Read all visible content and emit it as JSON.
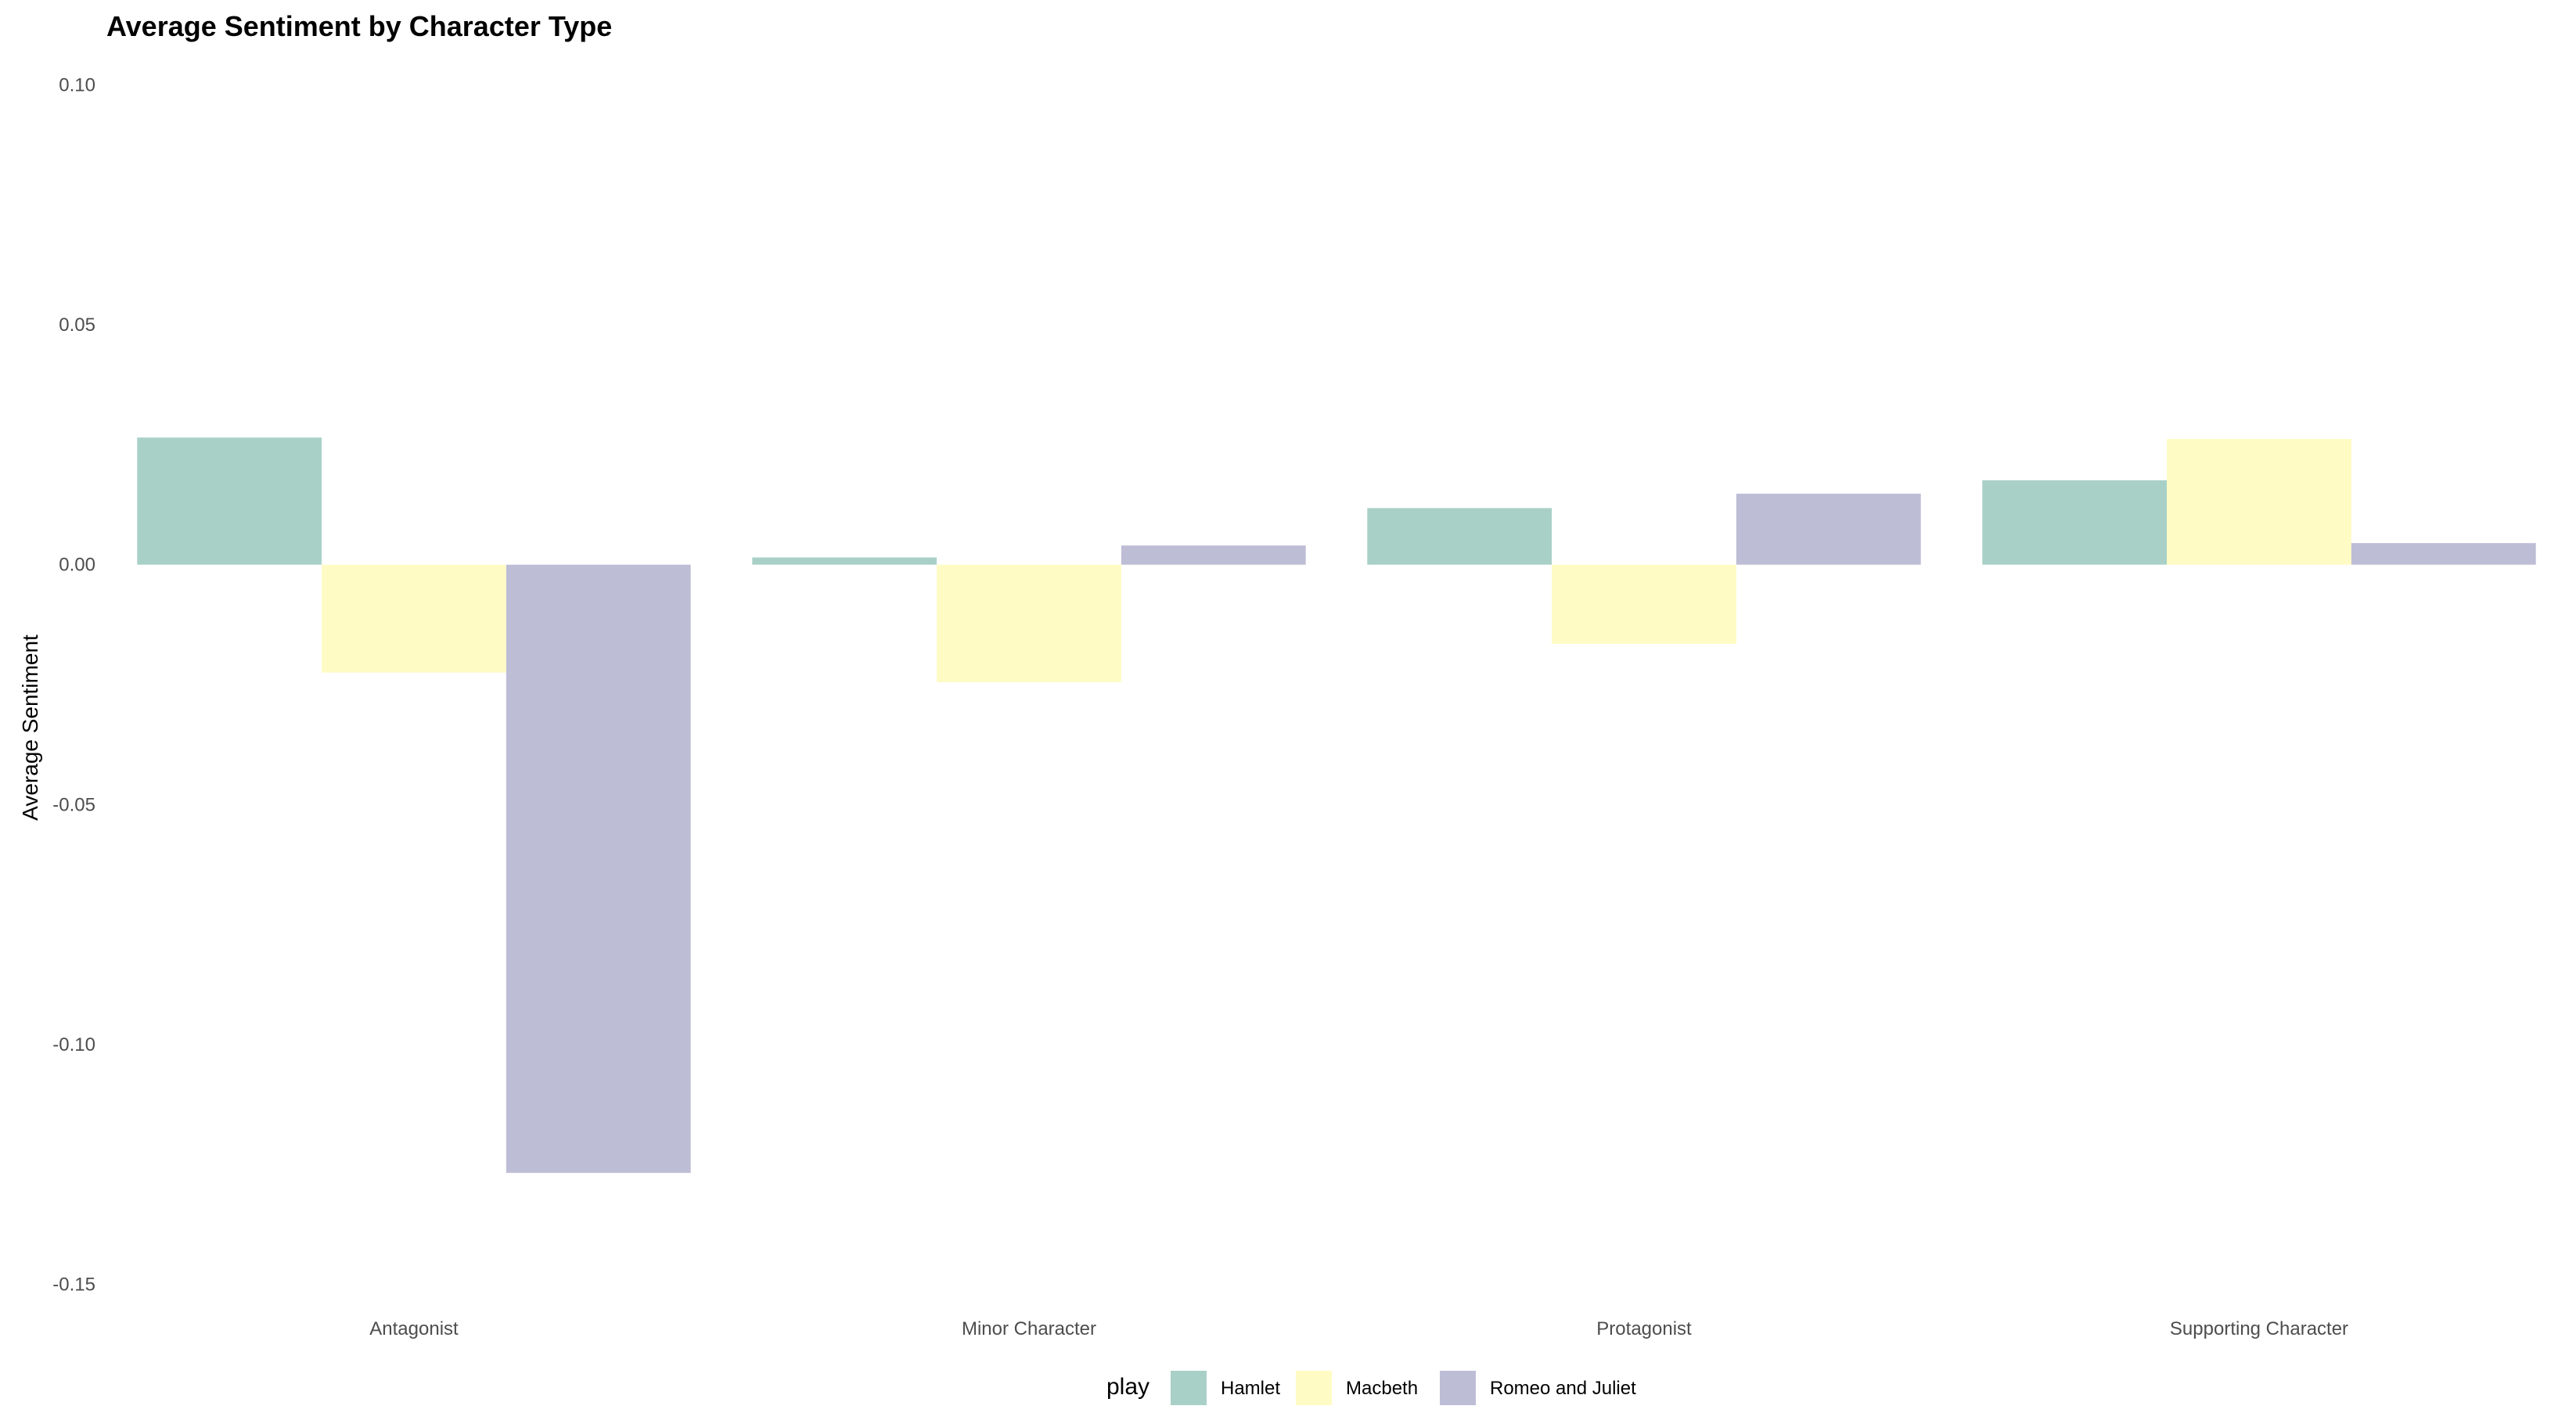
{
  "chart_data": {
    "type": "bar",
    "title": "Average Sentiment by Character Type",
    "xlabel": "",
    "ylabel": "Average Sentiment",
    "categories": [
      "Antagonist",
      "Minor Character",
      "Protagonist",
      "Supporting Character"
    ],
    "series": [
      {
        "name": "Hamlet",
        "color": "#A9D0C7",
        "values": [
          0.0265,
          0.0015,
          0.0118,
          0.0176
        ]
      },
      {
        "name": "Macbeth",
        "color": "#FFFBC4",
        "values": [
          -0.0225,
          -0.0245,
          -0.0165,
          0.0262
        ]
      },
      {
        "name": "Romeo and Juliet",
        "color": "#BEBDD6",
        "values": [
          -0.1268,
          0.004,
          0.0148,
          0.0045
        ]
      }
    ],
    "ylim": [
      -0.155,
      0.105
    ],
    "yticks": [
      0.1,
      0.05,
      0.0,
      -0.05,
      -0.1,
      -0.15
    ],
    "ytick_labels": [
      "0.10",
      "0.05",
      "0.00",
      "-0.05",
      "-0.10",
      "-0.15"
    ],
    "grid": false,
    "legend": {
      "title": "play",
      "position": "bottom"
    }
  }
}
